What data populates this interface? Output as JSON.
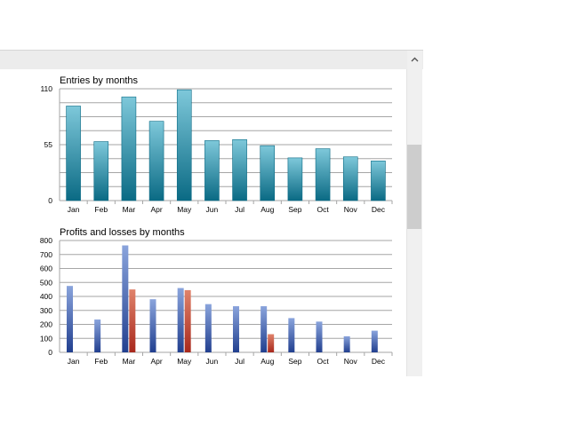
{
  "colors": {
    "entries_top": "#7ec8da",
    "entries_bottom": "#0a6a84",
    "profit_top": "#8aa4dc",
    "profit_bottom": "#213f8f",
    "loss_top": "#e0836b",
    "loss_bottom": "#a8281c",
    "grid": "#a6a6a6"
  },
  "chart_data": [
    {
      "type": "bar",
      "title": "Entries by months",
      "categories": [
        "Jan",
        "Feb",
        "Mar",
        "Apr",
        "May",
        "Jun",
        "Jul",
        "Aug",
        "Sep",
        "Oct",
        "Nov",
        "Dec"
      ],
      "values": [
        93,
        58,
        102,
        78,
        109,
        59,
        60,
        54,
        42,
        51,
        43,
        39
      ],
      "ylim": [
        0,
        110
      ],
      "yticks": [
        0,
        55,
        110
      ],
      "grid_lines": 8,
      "grid": true
    },
    {
      "type": "bar",
      "title": "Profits and losses by months",
      "categories": [
        "Jan",
        "Feb",
        "Mar",
        "Apr",
        "May",
        "Jun",
        "Jul",
        "Aug",
        "Sep",
        "Oct",
        "Nov",
        "Dec"
      ],
      "series": [
        {
          "values": [
            475,
            235,
            765,
            380,
            460,
            345,
            330,
            330,
            245,
            220,
            115,
            155
          ]
        },
        {
          "values": [
            0,
            0,
            450,
            0,
            445,
            0,
            0,
            130,
            0,
            0,
            0,
            0
          ]
        }
      ],
      "ylim": [
        0,
        800
      ],
      "yticks": [
        0,
        100,
        200,
        300,
        400,
        500,
        600,
        700,
        800
      ],
      "grid": true
    }
  ]
}
